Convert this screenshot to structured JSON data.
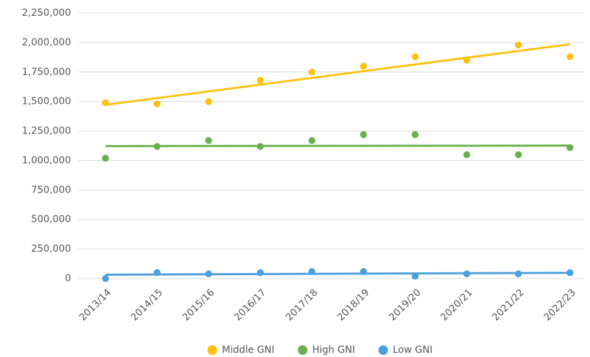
{
  "chart_data": {
    "type": "scatter",
    "categories": [
      "2013/14",
      "2014/15",
      "2015/16",
      "2016/17",
      "2017/18",
      "2018/19",
      "2019/20",
      "2020/21",
      "2021/22",
      "2022/23"
    ],
    "series": [
      {
        "name": "Middle GNI",
        "color": "#fbc210",
        "values": [
          1490000,
          1480000,
          1500000,
          1680000,
          1750000,
          1800000,
          1880000,
          1850000,
          1980000,
          1880000
        ]
      },
      {
        "name": "High GNI",
        "color": "#6ab04c",
        "values": [
          1020000,
          1120000,
          1170000,
          1120000,
          1170000,
          1220000,
          1220000,
          1050000,
          1050000,
          1110000
        ]
      },
      {
        "name": "Low GNI",
        "color": "#4a9fdc",
        "values": [
          0,
          50000,
          40000,
          50000,
          60000,
          60000,
          20000,
          40000,
          40000,
          50000
        ]
      }
    ],
    "trendline": "linear",
    "ylim": [
      0,
      2250000
    ],
    "yticks": [
      0,
      {
        "value": 250000,
        "label": "250,000"
      },
      {
        "value": 500000,
        "label": "500,000"
      },
      {
        "value": 750000,
        "label": "750,000"
      },
      {
        "value": 1000000,
        "label": "1,000,000"
      },
      {
        "value": 1250000,
        "label": "1,250,000"
      },
      {
        "value": 1500000,
        "label": "1,500,000"
      },
      {
        "value": 1750000,
        "label": "1,750,000"
      },
      {
        "value": 2000000,
        "label": "2,000,000"
      },
      {
        "value": 2250000,
        "label": "2,250,000"
      }
    ],
    "grid": true,
    "legend": "bottom"
  }
}
